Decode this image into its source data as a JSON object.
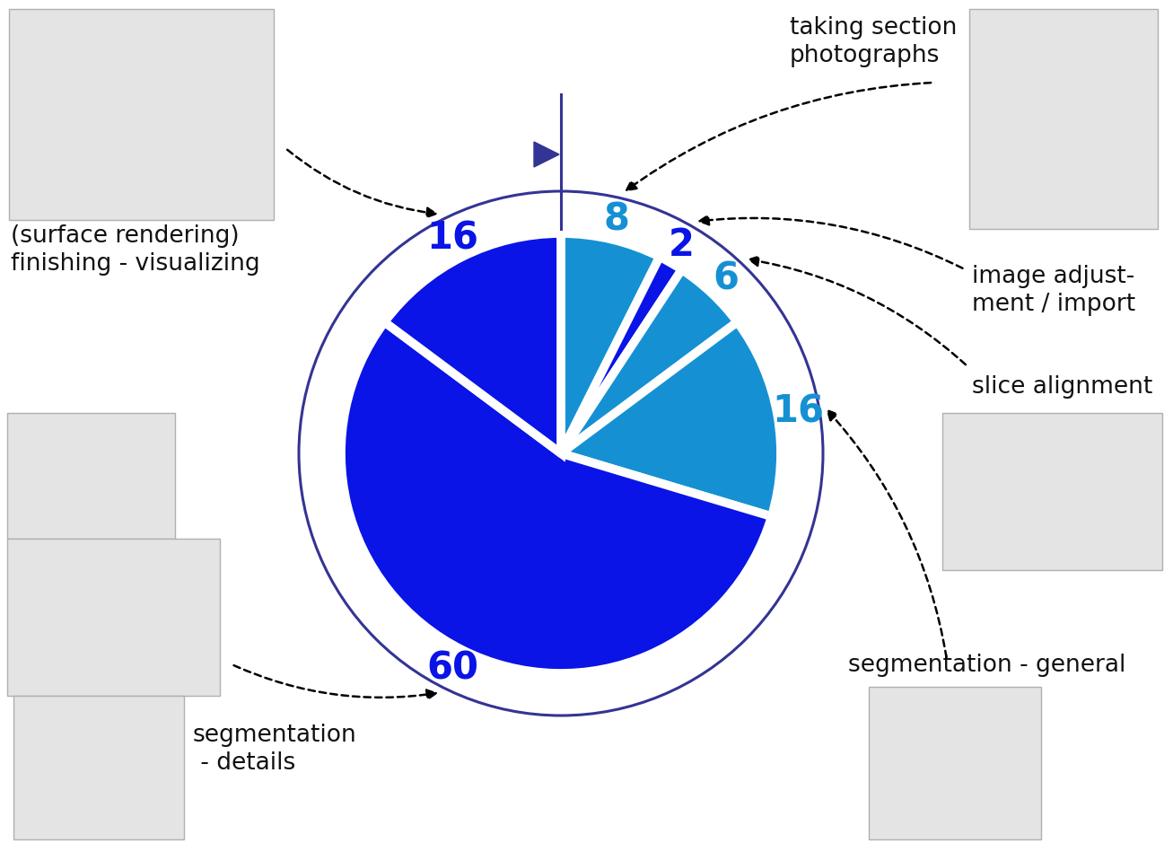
{
  "chart_data": {
    "type": "pie",
    "categories": [
      "taking section\nphotographs",
      "image adjust-\nment / import",
      "slice alignment",
      "segmentation - general",
      "segmentation\n - details",
      "(surface rendering)\nfinishing - visualizing"
    ],
    "values": [
      8,
      2,
      6,
      16,
      60,
      16
    ],
    "colors": [
      "#1591d3",
      "#0a14e6",
      "#1591d3",
      "#1591d3",
      "#0a14e6",
      "#0a14e6"
    ],
    "data_labels": true
  }
}
